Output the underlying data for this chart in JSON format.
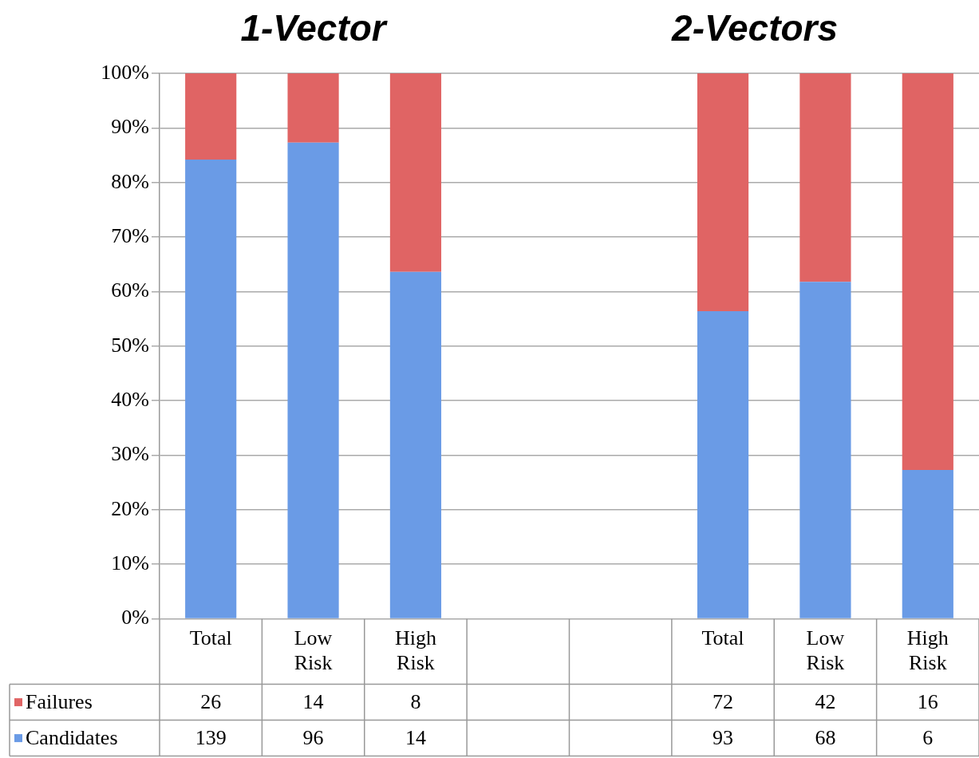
{
  "chart_data": {
    "type": "bar",
    "stacked": true,
    "categories": [
      "Total",
      "Low Risk",
      "High Risk",
      null,
      null,
      "Total",
      "Low Risk",
      "High Risk"
    ],
    "series": [
      {
        "name": "Candidates",
        "color": "#6a9be6",
        "values": [
          84.2,
          87.3,
          63.6,
          null,
          null,
          56.4,
          61.8,
          27.3
        ]
      },
      {
        "name": "Failures",
        "color": "#e06464",
        "values": [
          15.8,
          12.7,
          36.4,
          null,
          null,
          43.6,
          38.2,
          72.7
        ]
      }
    ],
    "ylim": [
      0,
      100
    ],
    "yticks": [
      {
        "value": 0,
        "label": "0%"
      },
      {
        "value": 10,
        "label": "10%"
      },
      {
        "value": 20,
        "label": "20%"
      },
      {
        "value": 30,
        "label": "30%"
      },
      {
        "value": 40,
        "label": "40%"
      },
      {
        "value": 50,
        "label": "50%"
      },
      {
        "value": 60,
        "label": "60%"
      },
      {
        "value": 70,
        "label": "70%"
      },
      {
        "value": 80,
        "label": "80%"
      },
      {
        "value": 90,
        "label": "90%"
      },
      {
        "value": 100,
        "label": "100%"
      }
    ],
    "grid": "y",
    "legend": "bottom left",
    "annotations": [
      "1-Vector",
      "2-Vectors",
      "26",
      "14",
      "8",
      "72",
      "42",
      "16",
      "139",
      "96",
      "14",
      "93",
      "68",
      "6"
    ]
  }
}
